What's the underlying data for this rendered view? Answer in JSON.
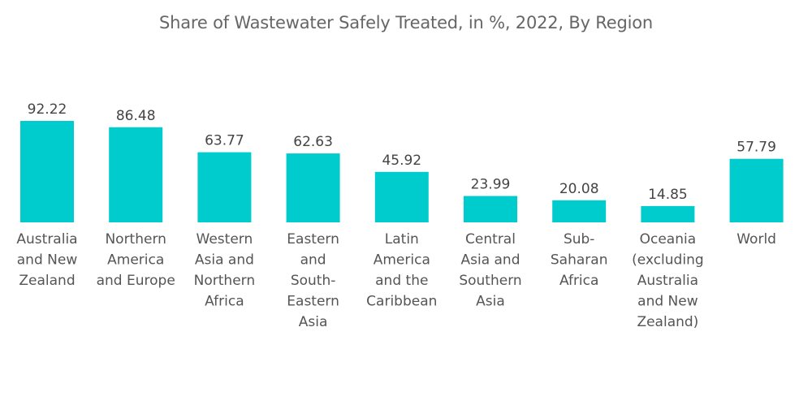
{
  "chart_data": {
    "type": "bar",
    "title": "Share of Wastewater Safely Treated, in %, 2022, By Region",
    "xlabel": "",
    "ylabel": "",
    "ylim": [
      0,
      100
    ],
    "grid": false,
    "legend": "none",
    "bar_color": "#00CCCE",
    "categories": [
      [
        "Australia",
        "and New",
        "Zealand"
      ],
      [
        "Northern",
        "America",
        "and Europe"
      ],
      [
        "Western",
        "Asia and",
        "Northern",
        "Africa"
      ],
      [
        "Eastern",
        "and",
        "South-",
        "Eastern",
        "Asia"
      ],
      [
        "Latin",
        "America",
        "and the",
        "Caribbean"
      ],
      [
        "Central",
        "Asia and",
        "Southern",
        "Asia"
      ],
      [
        "Sub-",
        "Saharan",
        "Africa"
      ],
      [
        "Oceania",
        "(excluding",
        "Australia",
        "and New",
        "Zealand)"
      ],
      [
        "World"
      ]
    ],
    "values": [
      92.22,
      86.48,
      63.77,
      62.63,
      45.92,
      23.99,
      20.08,
      14.85,
      57.79
    ],
    "value_labels": [
      "92.22",
      "86.48",
      "63.77",
      "62.63",
      "45.92",
      "23.99",
      "20.08",
      "14.85",
      "57.79"
    ]
  }
}
